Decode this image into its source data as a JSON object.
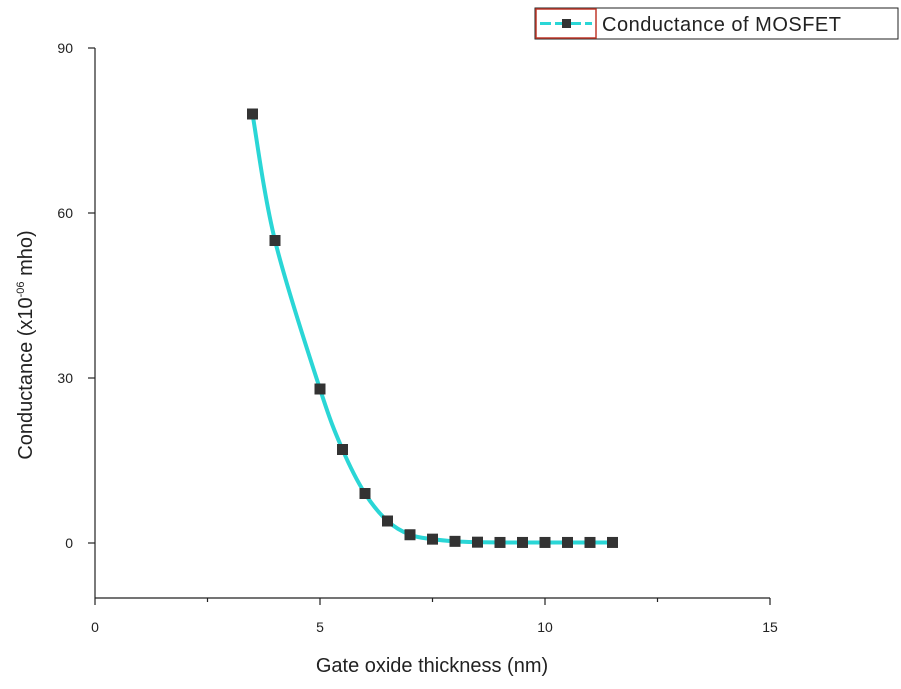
{
  "chart_data": {
    "type": "line",
    "xlabel": "Gate oxide thickness (nm)",
    "ylabel": {
      "prefix": "Conductance (x10",
      "exponent": "-06",
      "suffix": " mho)"
    },
    "xlim": [
      0,
      15
    ],
    "ylim": [
      -10,
      90
    ],
    "x_ticks": [
      0,
      5,
      10,
      15
    ],
    "x_tick_labels": [
      "0",
      "5",
      "10",
      "15"
    ],
    "x_minor_ticks": [
      2.5,
      7.5,
      12.5
    ],
    "y_ticks": [
      0,
      30,
      60,
      90
    ],
    "y_tick_labels": [
      "0",
      "30",
      "60",
      "90"
    ],
    "grid": false,
    "legend_position": "top-right",
    "series": [
      {
        "name": "Conductance of MOSFET",
        "line_color": "#2ad6d6",
        "marker_color": "#333333",
        "marker": "square",
        "line_style": "smooth",
        "x": [
          3.5,
          4.0,
          5.0,
          5.5,
          6.0,
          6.5,
          7.0,
          7.5,
          8.0,
          8.5,
          9.0,
          9.5,
          10.0,
          10.5,
          11.0,
          11.5
        ],
        "y": [
          78,
          55,
          28,
          17,
          9,
          4,
          1.5,
          0.7,
          0.3,
          0.15,
          0.1,
          0.1,
          0.1,
          0.1,
          0.1,
          0.1
        ]
      }
    ]
  }
}
